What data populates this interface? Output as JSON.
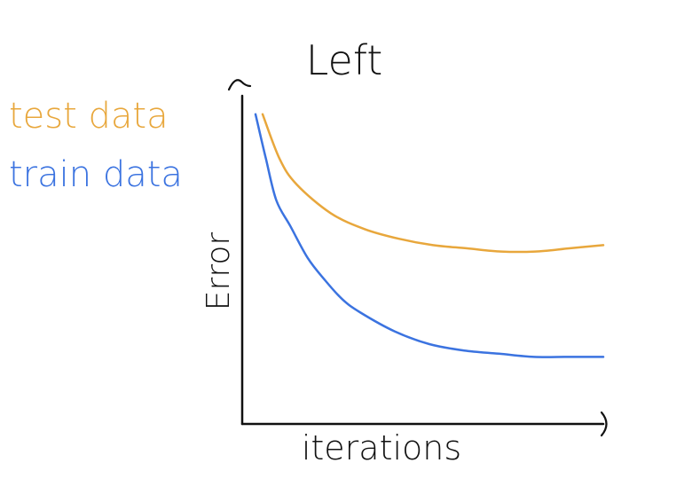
{
  "chart_data": {
    "type": "line",
    "title": "Left",
    "xlabel": "iterations",
    "ylabel": "Error",
    "grid": false,
    "legend_position": "top-left",
    "xlim": [
      0,
      100
    ],
    "ylim": [
      0,
      100
    ],
    "series": [
      {
        "name": "test data",
        "color": "#E8A73C",
        "x": [
          0,
          5,
          10,
          20,
          30,
          40,
          50,
          60,
          70,
          80,
          90,
          100
        ],
        "y": [
          97,
          83,
          75,
          66,
          61,
          58,
          56,
          55,
          54,
          54,
          55,
          56
        ]
      },
      {
        "name": "train data",
        "color": "#3B73E0",
        "x": [
          0,
          3,
          6,
          10,
          15,
          20,
          25,
          30,
          40,
          50,
          60,
          70,
          80,
          90,
          100
        ],
        "y": [
          97,
          83,
          70,
          62,
          52,
          45,
          39,
          35,
          29,
          25,
          23,
          22,
          21,
          21,
          21
        ]
      }
    ]
  }
}
